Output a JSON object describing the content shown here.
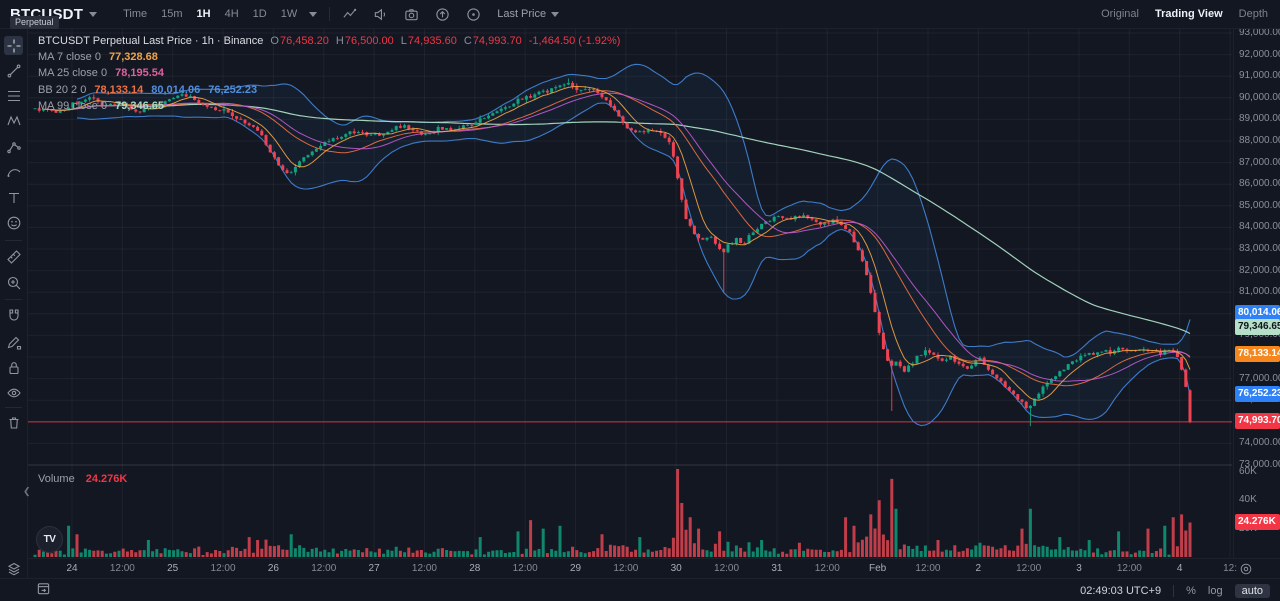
{
  "topbar": {
    "symbol": "BTCUSDT",
    "symbol_tag": "Perpetual",
    "intervals": [
      {
        "label": "Time"
      },
      {
        "label": "15m"
      },
      {
        "label": "1H",
        "active": true
      },
      {
        "label": "4H"
      },
      {
        "label": "1D"
      },
      {
        "label": "1W"
      }
    ],
    "price_type": "Last Price",
    "right_tabs": [
      {
        "label": "Original"
      },
      {
        "label": "Trading View",
        "active": true
      },
      {
        "label": "Depth"
      }
    ]
  },
  "left_toolbar": {
    "tools": [
      "crosshair",
      "trend-line",
      "fib-retracement",
      "xabcd-pattern",
      "forecast",
      "brush",
      "text",
      "emoji",
      "ruler",
      "zoom-in",
      "magnet",
      "drawing-mode-lock",
      "lock-all",
      "hide-all",
      "remove-all",
      "object-tree"
    ]
  },
  "legend": {
    "title": "BTCUSDT Perpetual Last Price · 1h · Binance",
    "ohlc": [
      {
        "k": "O",
        "v": "76,458.20"
      },
      {
        "k": "H",
        "v": "76,500.00"
      },
      {
        "k": "L",
        "v": "74,935.60"
      },
      {
        "k": "C",
        "v": "74,993.70"
      }
    ],
    "change": "-1,464.50 (-1.92%)",
    "rows": [
      {
        "label": "MA 7 close 0",
        "values": [
          {
            "text": "77,328.68",
            "color": "#f2a444"
          }
        ]
      },
      {
        "label": "MA 25 close 0",
        "values": [
          {
            "text": "78,195.54",
            "color": "#e0609f"
          }
        ]
      },
      {
        "label": "BB 20 2 0",
        "values": [
          {
            "text": "78,133.14",
            "color": "#ef7043"
          },
          {
            "text": "80,014.06",
            "color": "#4f8fde"
          },
          {
            "text": "76,252.23",
            "color": "#4f8fde"
          }
        ]
      },
      {
        "label": "MA 99 close 0",
        "values": [
          {
            "text": "79,346.65",
            "color": "#a9dcc3"
          }
        ]
      }
    ],
    "volume_label": "Volume",
    "volume_value": "24.276K"
  },
  "price_axis": {
    "min": 73000,
    "max": 93000,
    "step": 1000,
    "volume_ticks": [
      {
        "label": "60K",
        "v": 60
      },
      {
        "label": "40K",
        "v": 40
      },
      {
        "label": "20K",
        "v": 20
      }
    ],
    "tags": [
      {
        "text": "80,014.06",
        "price": 80014.06,
        "bg": "#2f81f7",
        "fg": "#ffffff"
      },
      {
        "text": "79,346.65",
        "price": 79346.65,
        "bg": "#b5e0c7",
        "fg": "#10141f"
      },
      {
        "text": "78,133.14",
        "price": 78133.14,
        "bg": "#f6871f",
        "fg": "#ffffff"
      },
      {
        "text": "76,252.23",
        "price": 76252.23,
        "bg": "#2f81f7",
        "fg": "#ffffff"
      },
      {
        "text": "74,993.70",
        "price": 74993.7,
        "bg": "#f23645",
        "fg": "#ffffff"
      }
    ],
    "volume_tag": {
      "text": "24.276K",
      "v": 24.276,
      "bg": "#f23645",
      "fg": "#ffffff"
    }
  },
  "time_axis": {
    "labels": [
      "24",
      "12:00",
      "25",
      "12:00",
      "26",
      "12:00",
      "27",
      "12:00",
      "28",
      "12:00",
      "29",
      "12:00",
      "30",
      "12:00",
      "31",
      "12:00",
      "Feb",
      "12:00",
      "2",
      "12:00",
      "3",
      "12:00",
      "4",
      "12:"
    ]
  },
  "bottom_bar": {
    "clock": "02:49:03 UTC+9",
    "percent": "%",
    "log": "log",
    "auto": "auto"
  },
  "chart_data": {
    "type": "candlestick",
    "symbol": "BTCUSDT Perpetual",
    "interval": "1h",
    "exchange": "Binance",
    "current_bar": {
      "open": 76458.2,
      "high": 76500.0,
      "low": 74935.6,
      "close": 74993.7,
      "change": -1464.5,
      "change_pct": -1.92,
      "volume_k": 24.276
    },
    "indicators": {
      "ma7": 77328.68,
      "ma25": 78195.54,
      "ma99": 79346.65,
      "bb_basis": 78133.14,
      "bb_upper": 80014.06,
      "bb_lower": 76252.23
    },
    "price_range": [
      73000,
      93000
    ],
    "price_anchors": [
      [
        35,
        89500
      ],
      [
        60,
        89350
      ],
      [
        72,
        89700
      ],
      [
        90,
        90050
      ],
      [
        105,
        89600
      ],
      [
        122,
        89750
      ],
      [
        140,
        89350
      ],
      [
        155,
        89600
      ],
      [
        173,
        89950
      ],
      [
        185,
        90150
      ],
      [
        200,
        89700
      ],
      [
        215,
        89500
      ],
      [
        228,
        89350
      ],
      [
        240,
        89000
      ],
      [
        252,
        88650
      ],
      [
        262,
        88200
      ],
      [
        270,
        87500
      ],
      [
        278,
        86900
      ],
      [
        288,
        86400
      ],
      [
        298,
        86900
      ],
      [
        310,
        87450
      ],
      [
        324,
        87900
      ],
      [
        340,
        88250
      ],
      [
        355,
        88450
      ],
      [
        368,
        88300
      ],
      [
        380,
        88250
      ],
      [
        392,
        88550
      ],
      [
        402,
        88700
      ],
      [
        414,
        88450
      ],
      [
        425,
        88300
      ],
      [
        438,
        88600
      ],
      [
        450,
        88500
      ],
      [
        462,
        88700
      ],
      [
        475,
        88850
      ],
      [
        490,
        89200
      ],
      [
        505,
        89550
      ],
      [
        520,
        89950
      ],
      [
        535,
        90150
      ],
      [
        550,
        90350
      ],
      [
        562,
        90600
      ],
      [
        570,
        90650
      ],
      [
        578,
        90400
      ],
      [
        588,
        90500
      ],
      [
        598,
        90150
      ],
      [
        608,
        89850
      ],
      [
        618,
        89200
      ],
      [
        628,
        88600
      ],
      [
        638,
        88350
      ],
      [
        648,
        88550
      ],
      [
        658,
        88400
      ],
      [
        668,
        88150
      ],
      [
        674,
        87200
      ],
      [
        680,
        85600
      ],
      [
        686,
        84400
      ],
      [
        693,
        83800
      ],
      [
        701,
        83350
      ],
      [
        709,
        83600
      ],
      [
        716,
        83250
      ],
      [
        722,
        82800
      ],
      [
        728,
        83150
      ],
      [
        736,
        83450
      ],
      [
        744,
        83250
      ],
      [
        752,
        83750
      ],
      [
        760,
        84100
      ],
      [
        769,
        84300
      ],
      [
        778,
        84500
      ],
      [
        790,
        84400
      ],
      [
        801,
        84550
      ],
      [
        812,
        84300
      ],
      [
        822,
        84100
      ],
      [
        833,
        84300
      ],
      [
        843,
        84150
      ],
      [
        851,
        83650
      ],
      [
        859,
        82850
      ],
      [
        866,
        81900
      ],
      [
        872,
        80700
      ],
      [
        878,
        79400
      ],
      [
        884,
        78200
      ],
      [
        890,
        77450
      ],
      [
        897,
        77850
      ],
      [
        904,
        77300
      ],
      [
        911,
        77650
      ],
      [
        918,
        78050
      ],
      [
        926,
        78250
      ],
      [
        934,
        78100
      ],
      [
        942,
        77800
      ],
      [
        950,
        78050
      ],
      [
        958,
        77700
      ],
      [
        966,
        77400
      ],
      [
        973,
        77750
      ],
      [
        980,
        77950
      ],
      [
        988,
        77500
      ],
      [
        996,
        77100
      ],
      [
        1004,
        76700
      ],
      [
        1012,
        76350
      ],
      [
        1020,
        75950
      ],
      [
        1028,
        75650
      ],
      [
        1035,
        76150
      ],
      [
        1043,
        76550
      ],
      [
        1051,
        76950
      ],
      [
        1059,
        77300
      ],
      [
        1067,
        77600
      ],
      [
        1074,
        77850
      ],
      [
        1081,
        78000
      ],
      [
        1091,
        78150
      ],
      [
        1101,
        78300
      ],
      [
        1110,
        78200
      ],
      [
        1119,
        78400
      ],
      [
        1127,
        78300
      ],
      [
        1135,
        78200
      ],
      [
        1143,
        78400
      ],
      [
        1151,
        78300
      ],
      [
        1159,
        78150
      ],
      [
        1166,
        78350
      ],
      [
        1173,
        78200
      ],
      [
        1179,
        77850
      ],
      [
        1184,
        77100
      ],
      [
        1188,
        76200
      ],
      [
        1191,
        74993.7
      ]
    ],
    "wick_overrides": [
      [
        722,
        "low",
        81000
      ],
      [
        890,
        "low",
        75500
      ],
      [
        1030,
        "low",
        74800
      ],
      [
        568,
        "high",
        90900
      ]
    ],
    "volume_spikes_k": [
      [
        68,
        22
      ],
      [
        75,
        16
      ],
      [
        148,
        12
      ],
      [
        250,
        14
      ],
      [
        258,
        12
      ],
      [
        290,
        16
      ],
      [
        480,
        14
      ],
      [
        520,
        18
      ],
      [
        530,
        26
      ],
      [
        545,
        20
      ],
      [
        560,
        22
      ],
      [
        600,
        16
      ],
      [
        640,
        14
      ],
      [
        677,
        62
      ],
      [
        683,
        38
      ],
      [
        690,
        28
      ],
      [
        700,
        20
      ],
      [
        718,
        18
      ],
      [
        760,
        12
      ],
      [
        800,
        10
      ],
      [
        845,
        28
      ],
      [
        852,
        22
      ],
      [
        872,
        30
      ],
      [
        880,
        40
      ],
      [
        890,
        55
      ],
      [
        897,
        34
      ],
      [
        940,
        12
      ],
      [
        979,
        10
      ],
      [
        1020,
        20
      ],
      [
        1030,
        34
      ],
      [
        1060,
        14
      ],
      [
        1090,
        12
      ],
      [
        1120,
        18
      ],
      [
        1148,
        20
      ],
      [
        1165,
        22
      ],
      [
        1175,
        28
      ],
      [
        1183,
        30
      ]
    ],
    "colors": {
      "up": "#0fa37f",
      "down": "#ef4352",
      "bb": "#3d7bc9",
      "bb_fill": "rgba(61,123,201,0.07)",
      "ma7": "#f2a444",
      "ma25": "#c15bd1",
      "ma99": "#a9dcc3",
      "bb_basis": "#ef7043",
      "last_price_line": "#f23645",
      "vol_up": "rgba(16,154,122,0.85)",
      "vol_down": "rgba(235,72,85,0.8)"
    }
  }
}
